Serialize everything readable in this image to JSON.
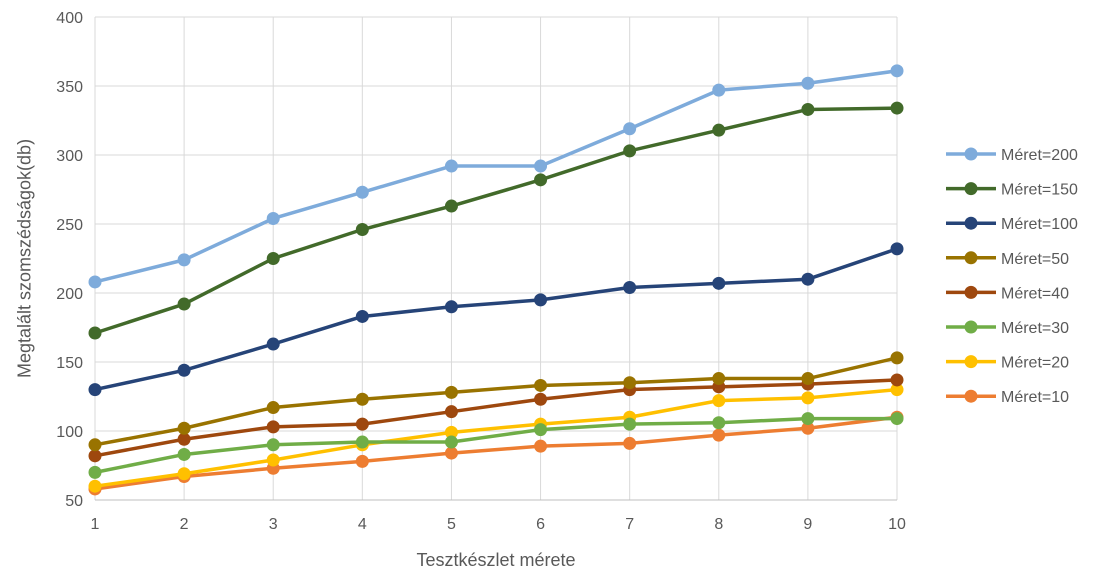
{
  "chart_data": {
    "type": "line",
    "title": "",
    "xlabel": "Tesztkészlet mérete",
    "ylabel": "Megtalált szomszédságok(db)",
    "x": [
      1,
      2,
      3,
      4,
      5,
      6,
      7,
      8,
      9,
      10
    ],
    "xticks": [
      "1",
      "2",
      "3",
      "4",
      "5",
      "6",
      "7",
      "8",
      "9",
      "10"
    ],
    "ylim": [
      50,
      400
    ],
    "yticks": [
      "50",
      "100",
      "150",
      "200",
      "250",
      "300",
      "350",
      "400"
    ],
    "grid": true,
    "legend_position": "right",
    "series": [
      {
        "name": "Méret=200",
        "color": "#7EABDB",
        "values": [
          208,
          224,
          254,
          273,
          292,
          292,
          319,
          347,
          352,
          361
        ]
      },
      {
        "name": "Méret=150",
        "color": "#426A2A",
        "values": [
          171,
          192,
          225,
          246,
          263,
          282,
          303,
          318,
          333,
          334
        ]
      },
      {
        "name": "Méret=100",
        "color": "#264478",
        "values": [
          130,
          144,
          163,
          183,
          190,
          195,
          204,
          207,
          210,
          232
        ]
      },
      {
        "name": "Méret=50",
        "color": "#997300",
        "values": [
          90,
          102,
          117,
          123,
          128,
          133,
          135,
          138,
          138,
          153
        ]
      },
      {
        "name": "Méret=40",
        "color": "#9E480E",
        "values": [
          82,
          94,
          103,
          105,
          114,
          123,
          130,
          132,
          134,
          137
        ]
      },
      {
        "name": "Méret=30",
        "color": "#70AD47",
        "values": [
          70,
          83,
          90,
          92,
          92,
          101,
          105,
          106,
          109,
          109
        ]
      },
      {
        "name": "Méret=20",
        "color": "#FFC000",
        "values": [
          60,
          69,
          79,
          90,
          99,
          105,
          110,
          122,
          124,
          130
        ]
      },
      {
        "name": "Méret=10",
        "color": "#ED7D31",
        "values": [
          58,
          67,
          73,
          78,
          84,
          89,
          91,
          97,
          102,
          110
        ]
      }
    ]
  }
}
